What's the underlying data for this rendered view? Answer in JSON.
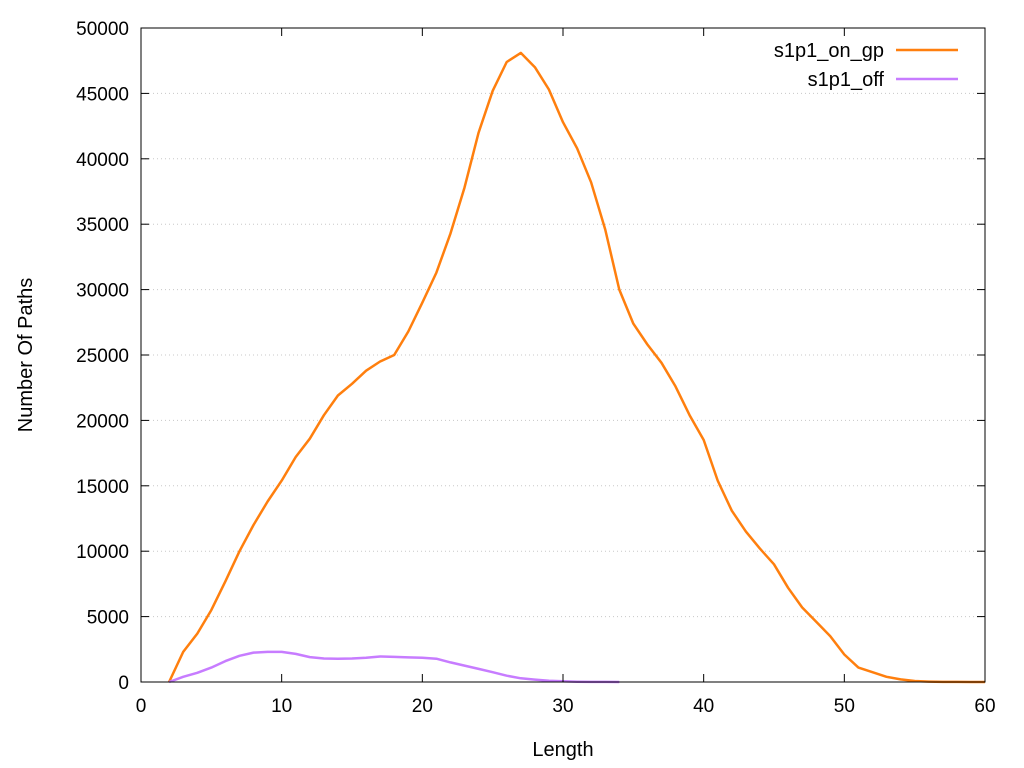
{
  "chart_data": {
    "type": "line",
    "title": "",
    "xlabel": "Length",
    "ylabel": "Number Of Paths",
    "xlim": [
      0,
      60
    ],
    "ylim": [
      0,
      50000
    ],
    "x_ticks": [
      0,
      10,
      20,
      30,
      40,
      50,
      60
    ],
    "y_ticks": [
      0,
      5000,
      10000,
      15000,
      20000,
      25000,
      30000,
      35000,
      40000,
      45000,
      50000
    ],
    "grid": "horizontal dotted",
    "legend_position": "top-right",
    "series": [
      {
        "name": "s1p1_on_gp",
        "color": "#ff7f0e",
        "x": [
          2,
          3,
          4,
          5,
          6,
          7,
          8,
          9,
          10,
          11,
          12,
          13,
          14,
          15,
          16,
          17,
          18,
          19,
          20,
          21,
          22,
          23,
          24,
          25,
          26,
          27,
          28,
          29,
          30,
          31,
          32,
          33,
          34,
          35,
          36,
          37,
          38,
          39,
          40,
          41,
          42,
          43,
          44,
          45,
          46,
          47,
          48,
          49,
          50,
          51,
          52,
          53,
          54,
          55,
          56,
          57,
          58,
          59,
          60
        ],
        "values": [
          0,
          2300,
          3700,
          5500,
          7700,
          10000,
          12000,
          13800,
          15400,
          17200,
          18600,
          20400,
          21900,
          22800,
          23800,
          24500,
          25000,
          26800,
          29000,
          31300,
          34300,
          37800,
          42000,
          45200,
          47400,
          48100,
          47000,
          45300,
          42800,
          40800,
          38200,
          34600,
          30000,
          27400,
          25800,
          24400,
          22600,
          20400,
          18500,
          15400,
          13100,
          11500,
          10200,
          9000,
          7200,
          5700,
          4600,
          3500,
          2100,
          1100,
          750,
          400,
          200,
          80,
          30,
          10,
          5,
          0,
          0
        ]
      },
      {
        "name": "s1p1_off",
        "color": "#c77cff",
        "x": [
          2,
          3,
          4,
          5,
          6,
          7,
          8,
          9,
          10,
          11,
          12,
          13,
          14,
          15,
          16,
          17,
          18,
          19,
          20,
          21,
          22,
          23,
          24,
          25,
          26,
          27,
          28,
          29,
          30,
          31,
          32,
          33,
          34
        ],
        "values": [
          0,
          400,
          700,
          1100,
          1600,
          2000,
          2250,
          2300,
          2300,
          2150,
          1900,
          1800,
          1780,
          1800,
          1850,
          1950,
          1920,
          1880,
          1850,
          1780,
          1500,
          1250,
          1000,
          750,
          480,
          280,
          180,
          100,
          50,
          20,
          10,
          5,
          0
        ]
      }
    ]
  }
}
